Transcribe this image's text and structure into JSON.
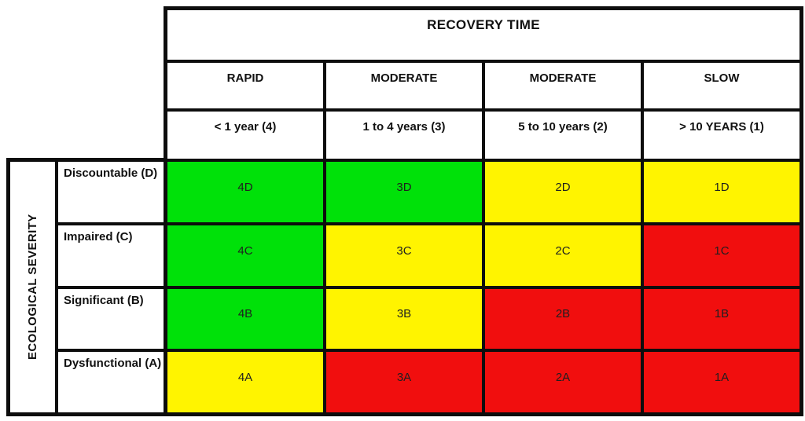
{
  "chart_data": {
    "type": "table",
    "title": "RECOVERY TIME",
    "row_axis_label": "ECOLOGICAL SEVERITY",
    "legend_colors": {
      "low_risk_green": "#00E109",
      "medium_risk_yellow": "#FFF400",
      "high_risk_red": "#F10E0E"
    },
    "columns": [
      {
        "label": "RAPID",
        "range": "< 1 year (4)"
      },
      {
        "label": "MODERATE",
        "range": "1 to 4 years (3)"
      },
      {
        "label": "MODERATE",
        "range": "5 to 10 years (2)"
      },
      {
        "label": "SLOW",
        "range": "> 10 YEARS (1)"
      }
    ],
    "rows": [
      {
        "label": "Discountable (D)",
        "cells": [
          {
            "code": "4D",
            "color": "#00E109"
          },
          {
            "code": "3D",
            "color": "#00E109"
          },
          {
            "code": "2D",
            "color": "#FFF400"
          },
          {
            "code": "1D",
            "color": "#FFF400"
          }
        ]
      },
      {
        "label": "Impaired (C)",
        "cells": [
          {
            "code": "4C",
            "color": "#00E109"
          },
          {
            "code": "3C",
            "color": "#FFF400"
          },
          {
            "code": "2C",
            "color": "#FFF400"
          },
          {
            "code": "1C",
            "color": "#F10E0E"
          }
        ]
      },
      {
        "label": "Significant (B)",
        "cells": [
          {
            "code": "4B",
            "color": "#00E109"
          },
          {
            "code": "3B",
            "color": "#FFF400"
          },
          {
            "code": "2B",
            "color": "#F10E0E"
          },
          {
            "code": "1B",
            "color": "#F10E0E"
          }
        ]
      },
      {
        "label": "Dysfunctional (A)",
        "cells": [
          {
            "code": "4A",
            "color": "#FFF400"
          },
          {
            "code": "3A",
            "color": "#F10E0E"
          },
          {
            "code": "2A",
            "color": "#F10E0E"
          },
          {
            "code": "1A",
            "color": "#F10E0E"
          }
        ]
      }
    ]
  }
}
